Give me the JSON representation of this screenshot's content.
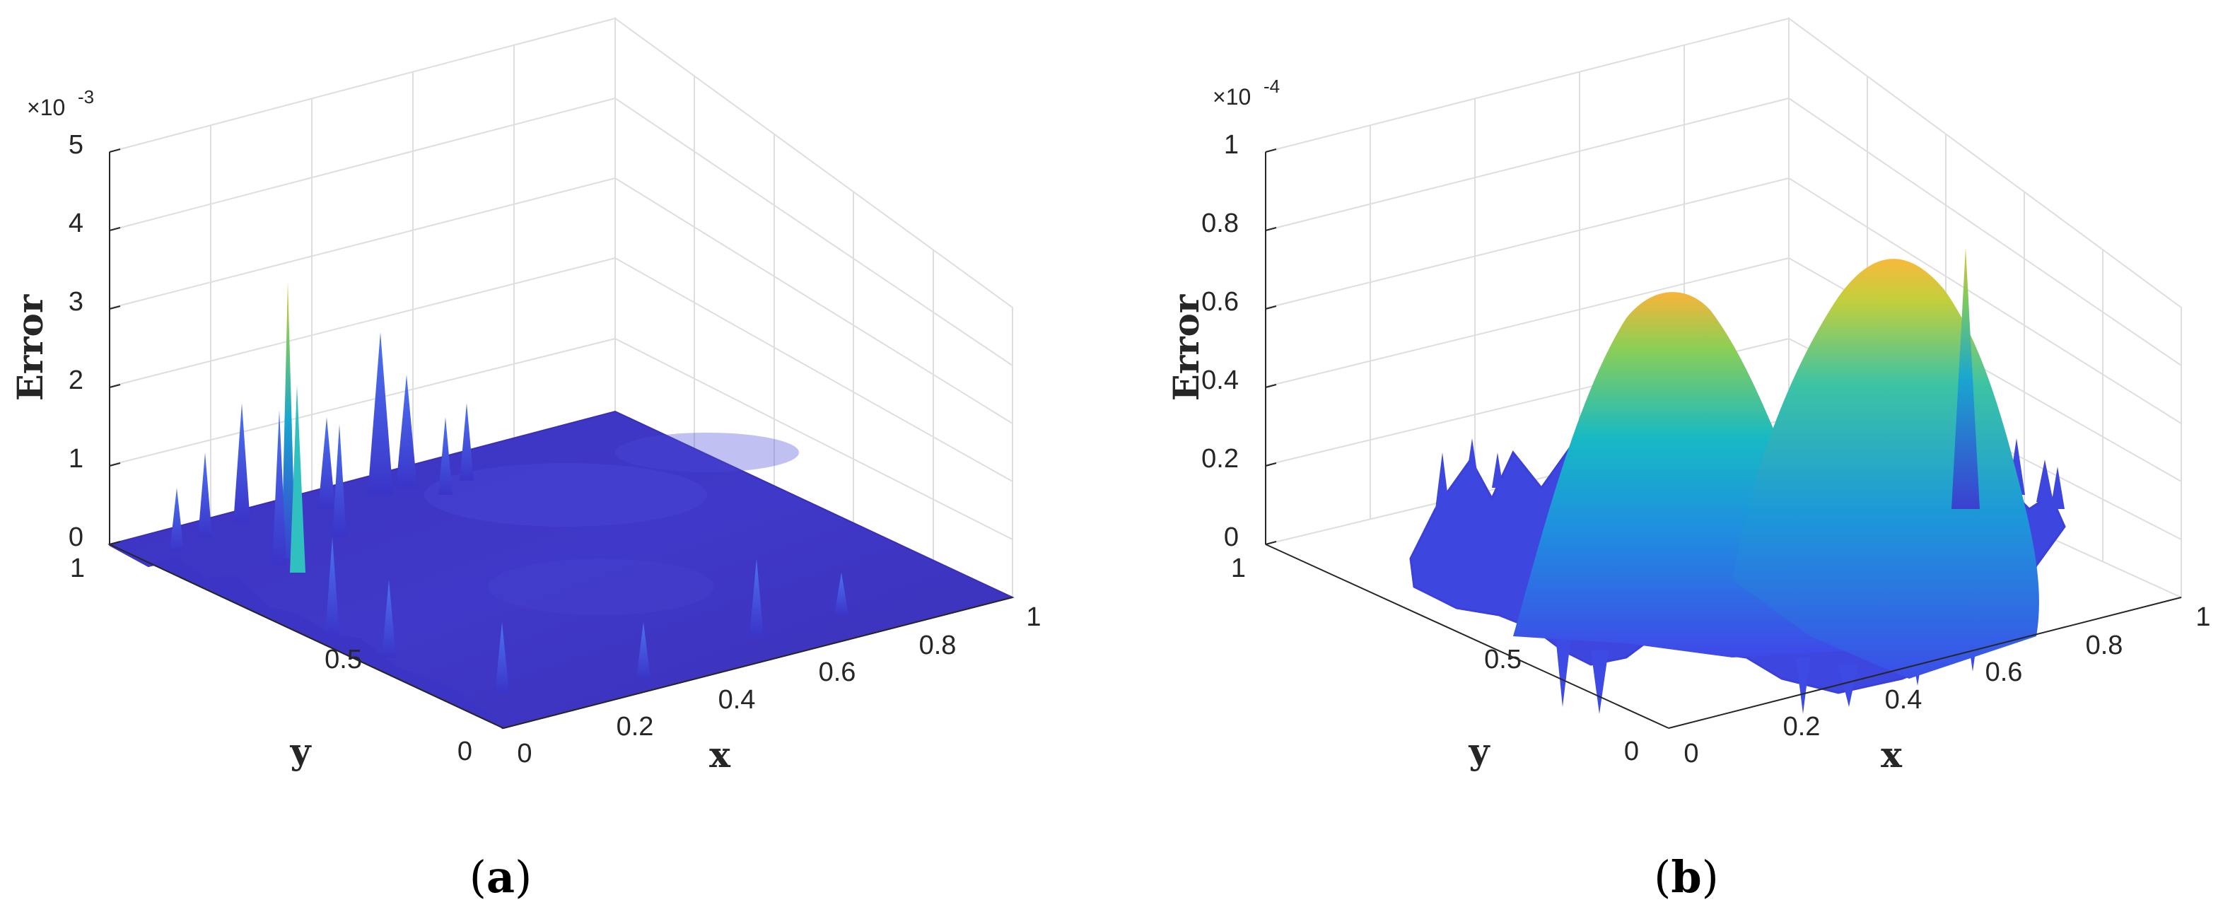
{
  "figure": {
    "panels": [
      {
        "caption": {
          "open": "(",
          "letter": "a",
          "close": ")"
        },
        "multiplier": {
          "base": "×10",
          "exponent": "-3"
        },
        "axes": {
          "z_title": "Error",
          "x_title": "x",
          "y_title": "y"
        }
      },
      {
        "caption": {
          "open": "(",
          "letter": "b",
          "close": ")"
        },
        "multiplier": {
          "base": "×10",
          "exponent": "-4"
        },
        "axes": {
          "z_title": "Error",
          "x_title": "x",
          "y_title": "y"
        }
      }
    ]
  },
  "chart_data": [
    {
      "type": "surface",
      "title": "",
      "xlabel": "x",
      "ylabel": "y",
      "zlabel": "Error",
      "xlim": [
        0,
        1
      ],
      "ylim": [
        0,
        1
      ],
      "zlim": [
        0,
        0.005
      ],
      "z_scale_factor": 0.001,
      "x_ticks": [
        "0",
        "0.2",
        "0.4",
        "0.6",
        "0.8",
        "1"
      ],
      "y_ticks": [
        "0",
        "0.5",
        "1"
      ],
      "z_ticks": [
        "0",
        "1",
        "2",
        "3",
        "4",
        "5"
      ],
      "colormap": "parula",
      "grid": true,
      "description_values": {
        "peak_error": 0.0033,
        "secondary_spikes": [
          0.0024,
          0.0019,
          0.0016
        ],
        "background_level": 0.0002
      }
    },
    {
      "type": "surface",
      "title": "",
      "xlabel": "x",
      "ylabel": "y",
      "zlabel": "Error",
      "xlim": [
        0,
        1
      ],
      "ylim": [
        0,
        1
      ],
      "zlim": [
        0,
        0.0001
      ],
      "z_scale_factor": 0.0001,
      "x_ticks": [
        "0",
        "0.2",
        "0.4",
        "0.6",
        "0.8",
        "1"
      ],
      "y_ticks": [
        "0",
        "0.5",
        "1"
      ],
      "z_ticks": [
        "0",
        "0.2",
        "0.4",
        "0.6",
        "0.8",
        "1"
      ],
      "colormap": "parula",
      "grid": true,
      "description_values": {
        "hump_peaks": [
          6.5e-05,
          7e-05
        ],
        "spike_peak": 7.2e-05,
        "min_level": 0.0
      }
    }
  ],
  "colors": {
    "low": "#3a2ec4",
    "mid_low": "#3f6cf5",
    "mid": "#1ab7c9",
    "mid_high": "#7fce5c",
    "high": "#f9b43a"
  }
}
